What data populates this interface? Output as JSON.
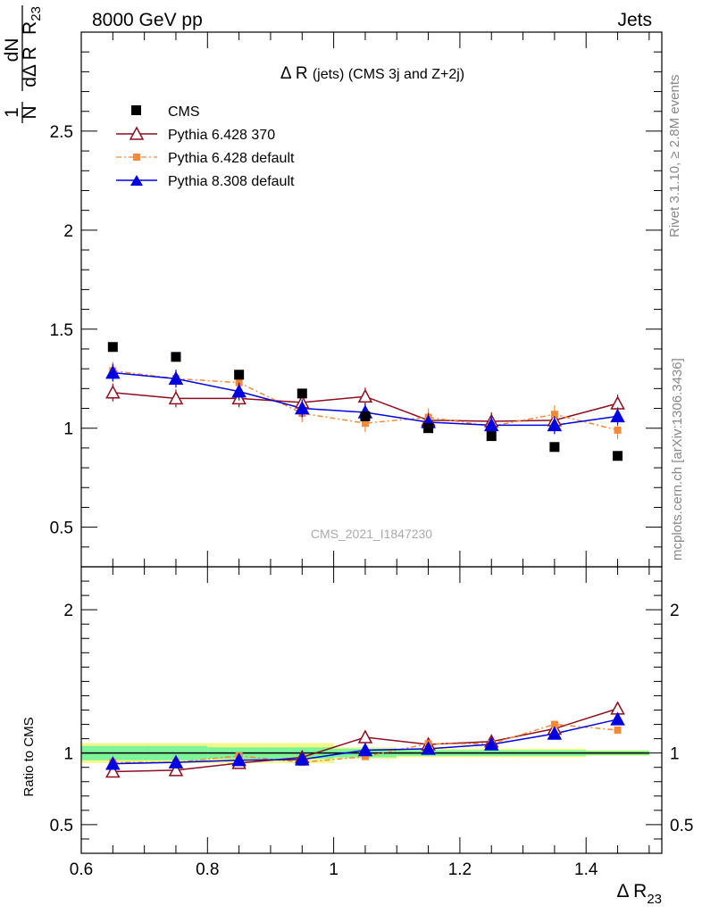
{
  "header": {
    "left": "8000 GeV pp",
    "right": "Jets"
  },
  "side": {
    "rivet": "Rivet 3.1.10, ≥ 2.8M events",
    "mcplots": "mcplots.cern.ch [arXiv:1306.3436]"
  },
  "watermark": "CMS_2021_I1847230",
  "colors": {
    "cms": "#000000",
    "p6_370": "#8b0f1f",
    "p6_def": "#f28a3a",
    "p8_def": "#0000e0",
    "band_green": "#7df39a",
    "band_yellow": "#f6f78a"
  },
  "chart_data": [
    {
      "type": "scatter",
      "title_main": "Δ R",
      "title_sub": "(jets) (CMS 3j and Z+2j)",
      "ylabel_num": "1",
      "ylabel_dN": "dN",
      "ylabel_N": "N",
      "ylabel_dR": "dΔ R",
      "ylabel_sub": "23",
      "xlim": [
        0.6,
        1.52
      ],
      "ylim": [
        0.3,
        3.0
      ],
      "yticks": [
        0.5,
        1,
        1.5,
        2,
        2.5
      ],
      "ytick_labels": [
        "0.5",
        "1",
        "1.5",
        "2",
        "2.5"
      ],
      "x": [
        0.65,
        0.75,
        0.85,
        0.95,
        1.05,
        1.15,
        1.25,
        1.35,
        1.45
      ],
      "series": [
        {
          "name": "CMS",
          "marker": "square",
          "values": [
            1.41,
            1.36,
            1.27,
            1.175,
            1.06,
            1.0,
            0.96,
            0.905,
            0.86
          ]
        },
        {
          "name": "Pythia 6.428 370",
          "marker": "triangle-open",
          "values": [
            1.18,
            1.15,
            1.15,
            1.13,
            1.16,
            1.04,
            1.035,
            1.04,
            1.125
          ]
        },
        {
          "name": "Pythia 6.428 default",
          "marker": "square-small",
          "values": [
            1.29,
            1.25,
            1.23,
            1.075,
            1.025,
            1.055,
            1.01,
            1.07,
            0.99
          ]
        },
        {
          "name": "Pythia 8.308 default",
          "marker": "triangle",
          "values": [
            1.28,
            1.25,
            1.185,
            1.1,
            1.08,
            1.03,
            1.015,
            1.015,
            1.06
          ]
        }
      ],
      "legend_position": "top-left"
    },
    {
      "type": "scatter",
      "ylabel": "Ratio to CMS",
      "xlabel": "Δ R",
      "xlabel_sub": "23",
      "xlim": [
        0.6,
        1.52
      ],
      "ylim": [
        0.3,
        2.3
      ],
      "xticks": [
        0.6,
        0.8,
        1,
        1.2,
        1.4
      ],
      "xtick_labels": [
        "0.6",
        "0.8",
        "1",
        "1.2",
        "1.4"
      ],
      "yticks": [
        0.5,
        1,
        2
      ],
      "ytick_labels": [
        "0.5",
        "1",
        "2"
      ],
      "x": [
        0.65,
        0.75,
        0.85,
        0.95,
        1.05,
        1.15,
        1.25,
        1.35,
        1.45
      ],
      "band_yellow": [
        0.07,
        0.07,
        0.07,
        0.07,
        0.04,
        0.03,
        0.03,
        0.03,
        0.02
      ],
      "band_green": [
        0.05,
        0.05,
        0.04,
        0.04,
        0.03,
        0.02,
        0.02,
        0.02,
        0.015
      ],
      "series": [
        {
          "name": "Pythia 6.428 370",
          "values": [
            0.87,
            0.88,
            0.93,
            0.97,
            1.11,
            1.06,
            1.08,
            1.17,
            1.31
          ]
        },
        {
          "name": "Pythia 6.428 default",
          "values": [
            0.935,
            0.935,
            0.98,
            0.935,
            0.975,
            1.065,
            1.065,
            1.2,
            1.16
          ]
        },
        {
          "name": "Pythia 8.308 default",
          "values": [
            0.925,
            0.935,
            0.95,
            0.955,
            1.02,
            1.03,
            1.06,
            1.135,
            1.235
          ]
        }
      ]
    }
  ]
}
